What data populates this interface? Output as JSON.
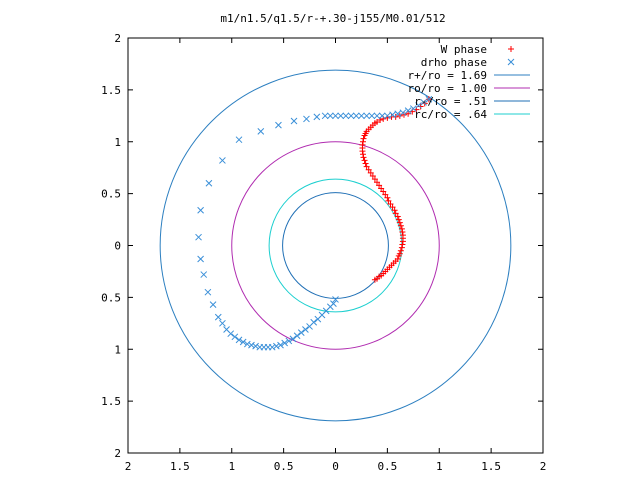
{
  "chart_data": {
    "type": "scatter",
    "title": "m1/n1.5/q1.5/r-+.30-j155/M0.01/512",
    "xlabel": "",
    "ylabel": "",
    "xlim": [
      -2,
      2
    ],
    "ylim": [
      -2,
      2
    ],
    "x_tick_labels": [
      "2",
      "1.5",
      "1",
      "0.5",
      "0",
      "0.5",
      "1",
      "1.5",
      "2"
    ],
    "x_tick_values": [
      -2,
      -1.5,
      -1,
      -0.5,
      0,
      0.5,
      1,
      1.5,
      2
    ],
    "y_tick_labels": [
      "2",
      "1.5",
      "1",
      "0.5",
      "0",
      "0.5",
      "1",
      "1.5",
      "2"
    ],
    "y_tick_values": [
      2,
      1.5,
      1,
      0.5,
      0,
      -0.5,
      -1,
      -1.5,
      -2
    ],
    "grid": false,
    "legend_position": "top-right",
    "circles": [
      {
        "label": "r+/ro = 1.69",
        "radius": 1.69,
        "color": "#2c7fc0"
      },
      {
        "label": "ro/ro = 1.00",
        "radius": 1.0,
        "color": "#b02cb0"
      },
      {
        "label": "r-/ro = .51",
        "radius": 0.51,
        "color": "#1f6fb5"
      },
      {
        "label": "rc/ro = .64",
        "radius": 0.64,
        "color": "#1ccfcf"
      }
    ],
    "series": [
      {
        "name": "W phase",
        "marker": "+",
        "color": "#ff0000",
        "points": [
          [
            0.38,
            -0.33
          ],
          [
            0.4,
            -0.32
          ],
          [
            0.42,
            -0.3
          ],
          [
            0.44,
            -0.29
          ],
          [
            0.46,
            -0.27
          ],
          [
            0.48,
            -0.25
          ],
          [
            0.5,
            -0.23
          ],
          [
            0.52,
            -0.21
          ],
          [
            0.54,
            -0.19
          ],
          [
            0.56,
            -0.17
          ],
          [
            0.58,
            -0.15
          ],
          [
            0.6,
            -0.13
          ],
          [
            0.61,
            -0.1
          ],
          [
            0.62,
            -0.08
          ],
          [
            0.63,
            -0.05
          ],
          [
            0.64,
            -0.02
          ],
          [
            0.645,
            0.01
          ],
          [
            0.65,
            0.04
          ],
          [
            0.65,
            0.07
          ],
          [
            0.65,
            0.1
          ],
          [
            0.645,
            0.13
          ],
          [
            0.64,
            0.16
          ],
          [
            0.63,
            0.19
          ],
          [
            0.62,
            0.22
          ],
          [
            0.61,
            0.25
          ],
          [
            0.6,
            0.28
          ],
          [
            0.58,
            0.31
          ],
          [
            0.57,
            0.34
          ],
          [
            0.55,
            0.37
          ],
          [
            0.53,
            0.4
          ],
          [
            0.51,
            0.43
          ],
          [
            0.5,
            0.46
          ],
          [
            0.48,
            0.49
          ],
          [
            0.46,
            0.52
          ],
          [
            0.44,
            0.55
          ],
          [
            0.42,
            0.58
          ],
          [
            0.4,
            0.61
          ],
          [
            0.38,
            0.64
          ],
          [
            0.36,
            0.67
          ],
          [
            0.34,
            0.7
          ],
          [
            0.32,
            0.73
          ],
          [
            0.3,
            0.76
          ],
          [
            0.29,
            0.79
          ],
          [
            0.28,
            0.82
          ],
          [
            0.27,
            0.85
          ],
          [
            0.265,
            0.88
          ],
          [
            0.26,
            0.91
          ],
          [
            0.26,
            0.94
          ],
          [
            0.26,
            0.97
          ],
          [
            0.265,
            1.0
          ],
          [
            0.27,
            1.03
          ],
          [
            0.28,
            1.06
          ],
          [
            0.29,
            1.08
          ],
          [
            0.3,
            1.1
          ],
          [
            0.32,
            1.12
          ],
          [
            0.34,
            1.14
          ],
          [
            0.36,
            1.16
          ],
          [
            0.38,
            1.18
          ],
          [
            0.4,
            1.19
          ],
          [
            0.43,
            1.21
          ],
          [
            0.46,
            1.22
          ],
          [
            0.5,
            1.23
          ],
          [
            0.54,
            1.24
          ],
          [
            0.58,
            1.24
          ],
          [
            0.62,
            1.25
          ],
          [
            0.66,
            1.26
          ],
          [
            0.7,
            1.27
          ],
          [
            0.74,
            1.29
          ],
          [
            0.78,
            1.31
          ],
          [
            0.82,
            1.34
          ],
          [
            0.86,
            1.37
          ],
          [
            0.9,
            1.41
          ]
        ]
      },
      {
        "name": "drho phase",
        "marker": "x",
        "color": "#3a8fd8",
        "points": [
          [
            0.9,
            1.41
          ],
          [
            0.85,
            1.38
          ],
          [
            0.8,
            1.35
          ],
          [
            0.75,
            1.32
          ],
          [
            0.7,
            1.3
          ],
          [
            0.65,
            1.28
          ],
          [
            0.6,
            1.27
          ],
          [
            0.55,
            1.26
          ],
          [
            0.5,
            1.25
          ],
          [
            0.45,
            1.25
          ],
          [
            0.4,
            1.25
          ],
          [
            0.35,
            1.25
          ],
          [
            0.3,
            1.25
          ],
          [
            0.25,
            1.25
          ],
          [
            0.2,
            1.25
          ],
          [
            0.15,
            1.25
          ],
          [
            0.1,
            1.25
          ],
          [
            0.05,
            1.25
          ],
          [
            0.0,
            1.25
          ],
          [
            -0.05,
            1.25
          ],
          [
            -0.1,
            1.25
          ],
          [
            -0.18,
            1.24
          ],
          [
            -0.28,
            1.22
          ],
          [
            -0.4,
            1.2
          ],
          [
            -0.55,
            1.16
          ],
          [
            -0.72,
            1.1
          ],
          [
            -0.93,
            1.02
          ],
          [
            -1.09,
            0.82
          ],
          [
            -1.22,
            0.6
          ],
          [
            -1.3,
            0.34
          ],
          [
            -1.32,
            0.08
          ],
          [
            -1.3,
            -0.13
          ],
          [
            -1.27,
            -0.28
          ],
          [
            -1.23,
            -0.45
          ],
          [
            -1.18,
            -0.57
          ],
          [
            -1.13,
            -0.69
          ],
          [
            -1.09,
            -0.75
          ],
          [
            -1.05,
            -0.81
          ],
          [
            -1.01,
            -0.85
          ],
          [
            -0.97,
            -0.88
          ],
          [
            -0.93,
            -0.91
          ],
          [
            -0.89,
            -0.93
          ],
          [
            -0.85,
            -0.95
          ],
          [
            -0.81,
            -0.96
          ],
          [
            -0.77,
            -0.97
          ],
          [
            -0.73,
            -0.98
          ],
          [
            -0.69,
            -0.98
          ],
          [
            -0.65,
            -0.98
          ],
          [
            -0.61,
            -0.98
          ],
          [
            -0.57,
            -0.97
          ],
          [
            -0.53,
            -0.96
          ],
          [
            -0.49,
            -0.94
          ],
          [
            -0.45,
            -0.92
          ],
          [
            -0.41,
            -0.9
          ],
          [
            -0.37,
            -0.87
          ],
          [
            -0.33,
            -0.84
          ],
          [
            -0.29,
            -0.81
          ],
          [
            -0.25,
            -0.78
          ],
          [
            -0.21,
            -0.74
          ],
          [
            -0.17,
            -0.71
          ],
          [
            -0.13,
            -0.67
          ],
          [
            -0.09,
            -0.63
          ],
          [
            -0.05,
            -0.59
          ],
          [
            -0.02,
            -0.56
          ],
          [
            0.0,
            -0.52
          ]
        ]
      }
    ]
  }
}
